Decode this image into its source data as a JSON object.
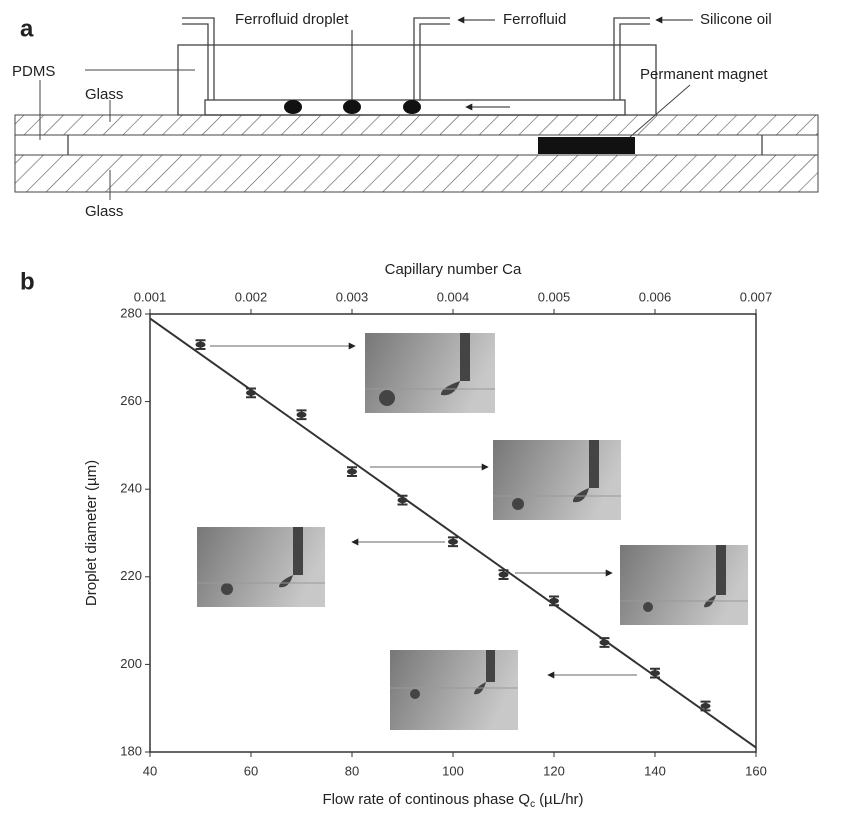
{
  "diagram": {
    "panel_label": "a",
    "labels": [
      "Ferrofluid droplet",
      "Ferrofluid",
      "Silicone oil",
      "PDMS",
      "Glass",
      "Permanent magnet",
      "Glass"
    ]
  },
  "chart_data": {
    "type": "scatter",
    "panel_label": "b",
    "x_label": "Flow rate of continous phase Q",
    "x_label_subscript": "c",
    "x_label_unit": "(µL/hr)",
    "y_label": "Droplet diameter (µm)",
    "x2_label": "Capillary number Ca",
    "x": [
      50,
      60,
      70,
      80,
      90,
      100,
      110,
      120,
      130,
      140,
      150
    ],
    "values": [
      273,
      262,
      257,
      244,
      237.5,
      228,
      220.5,
      214.5,
      205,
      198,
      190.5
    ],
    "errors": [
      1,
      1,
      1,
      1,
      1,
      1,
      1,
      1,
      1,
      1,
      1
    ],
    "fit": {
      "x": [
        40,
        160
      ],
      "values": [
        279,
        181
      ]
    },
    "color": "#333333",
    "xlim": [
      40,
      160
    ],
    "xticks": [
      40,
      60,
      80,
      100,
      120,
      140,
      160
    ],
    "ylim": [
      180,
      280
    ],
    "yticks": [
      180,
      200,
      220,
      240,
      260,
      280
    ],
    "x2lim": [
      0.001,
      0.007
    ],
    "x2ticks": [
      0.001,
      0.002,
      0.003,
      0.004,
      0.005,
      0.006,
      0.007
    ]
  }
}
